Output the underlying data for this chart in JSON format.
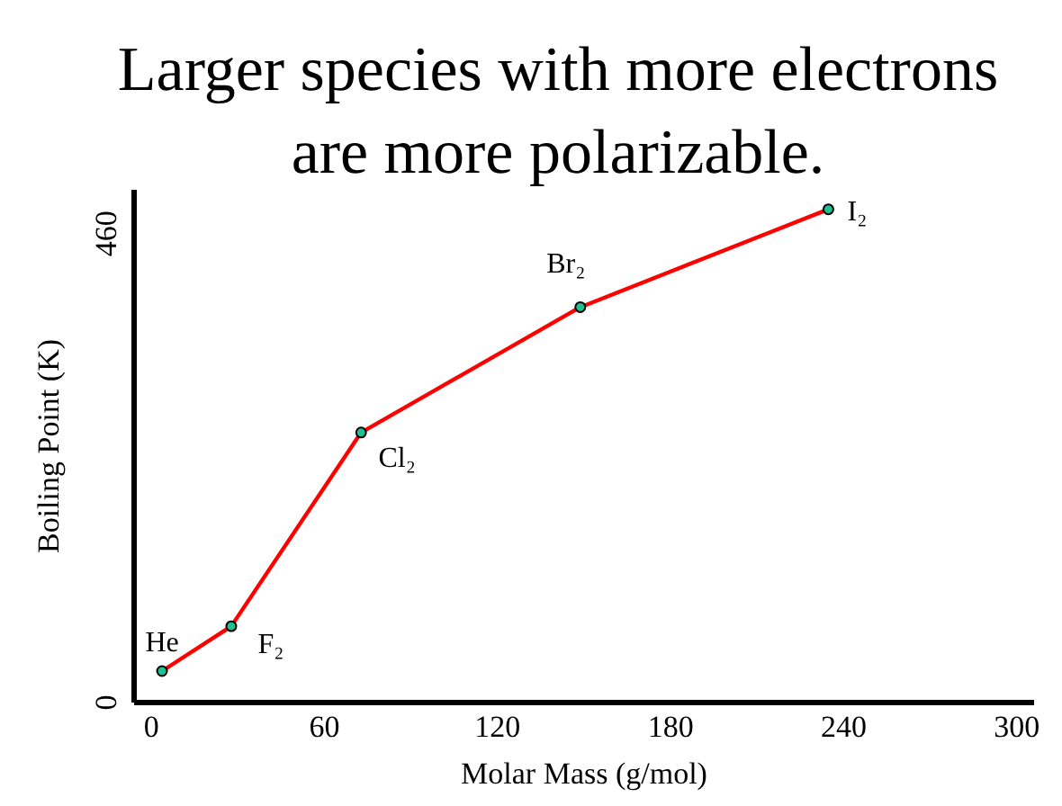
{
  "chart_data": {
    "type": "line",
    "title": "Larger species with more electrons\nare more polarizable.",
    "xlabel": "Molar Mass (g/mol)",
    "ylabel": "Boiling Point (K)",
    "x": [
      4,
      28,
      73,
      149,
      235
    ],
    "series": [
      {
        "color": "#ff0000",
        "values": [
          30,
          74,
          264,
          387,
          483
        ]
      },
      {
        "type": "scatter",
        "color": "#20c090",
        "values": [
          30,
          74,
          264,
          387,
          483
        ],
        "marker": "circle"
      }
    ],
    "xlim": [
      -6,
      306
    ],
    "ylim": [
      0,
      503
    ],
    "xticks": [
      0,
      60,
      120,
      180,
      240,
      300
    ],
    "yticks": [
      0,
      460
    ],
    "annotations": [
      {
        "text": "He",
        "x": 4,
        "y": 30
      },
      {
        "text": "F₂",
        "x": 28,
        "y": 74
      },
      {
        "text": "Cl₂",
        "x": 73,
        "y": 264
      },
      {
        "text": "Br₂",
        "x": 149,
        "y": 387
      },
      {
        "text": "I₂",
        "x": 235,
        "y": 483
      }
    ]
  }
}
